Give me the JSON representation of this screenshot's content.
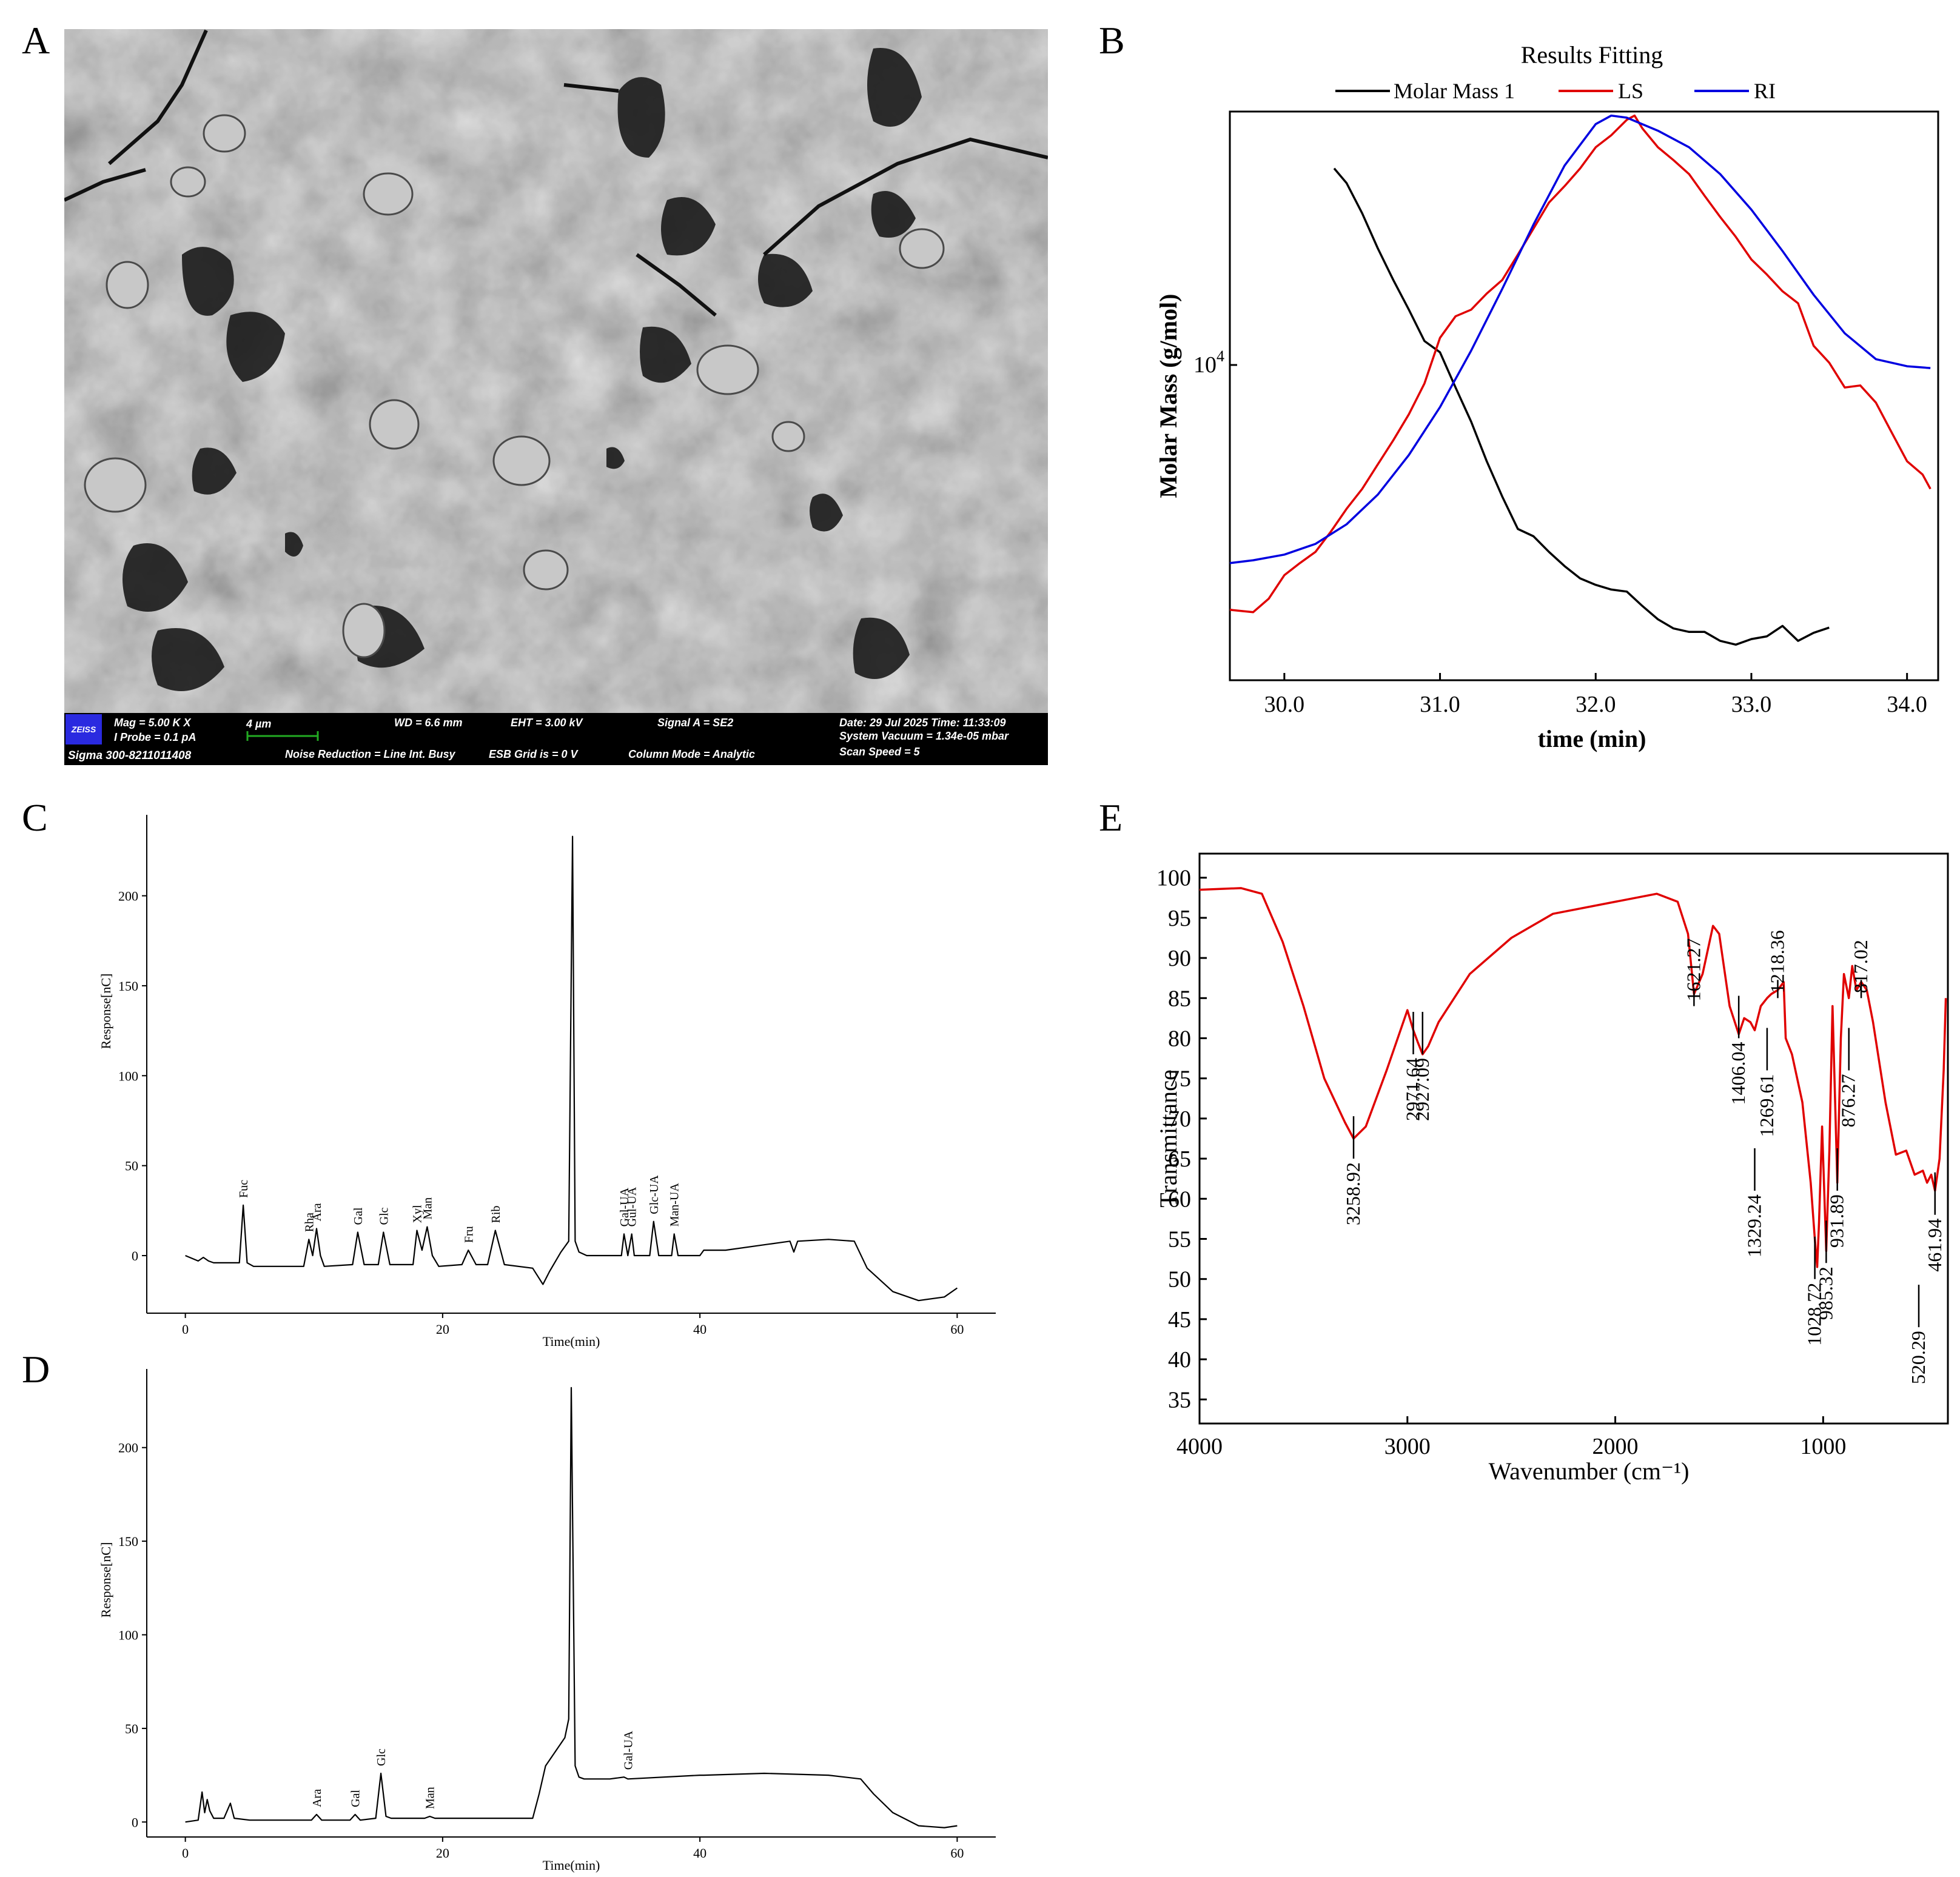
{
  "panels": {
    "A": {
      "letter": "A"
    },
    "B": {
      "letter": "B"
    },
    "C": {
      "letter": "C"
    },
    "D": {
      "letter": "D"
    },
    "E": {
      "letter": "E"
    }
  },
  "sem": {
    "logo": "ZEISS",
    "mag": "Mag =    5.00 K X",
    "probe": "I Probe =    0.1 pA",
    "scale": "4 µm",
    "wd": "WD =  6.6 mm",
    "eht": "EHT =  3.00 kV",
    "signal": "Signal A = SE2",
    "date": "Date: 29 Jul 2025    Time: 11:33:09",
    "vacuum": "System Vacuum = 1.34e-05 mbar",
    "instrument": "Sigma 300-8211011408",
    "noise": "Noise Reduction = Line Int. Busy",
    "esb": "ESB Grid is =     0  V",
    "column": "Column Mode = Analytic",
    "scan": "Scan Speed = 5",
    "colors": {
      "background": "#8a8a8a",
      "bar": "#000000",
      "logo": "#2a2ae0",
      "scale_bar": "#22aa22"
    }
  },
  "chart_data": [
    {
      "panel": "B",
      "type": "line",
      "title": "Results Fitting",
      "xlabel": "time (min)",
      "ylabel": "Molar Mass (g/mol)",
      "y_scale": "log",
      "y_tick_label_base": "10",
      "y_tick_label_exp": "4",
      "xlim": [
        29.65,
        34.2
      ],
      "ylim": [
        1450,
        42000
      ],
      "x_ticks": [
        "30.0",
        "31.0",
        "32.0",
        "33.0",
        "34.0"
      ],
      "legend_position": "top",
      "series": [
        {
          "name": "Molar Mass 1",
          "color": "#000000",
          "x": [
            30.32,
            30.4,
            30.5,
            30.6,
            30.7,
            30.8,
            30.9,
            31.0,
            31.1,
            31.2,
            31.3,
            31.4,
            31.5,
            31.6,
            31.7,
            31.8,
            31.9,
            32.0,
            32.1,
            32.2,
            32.3,
            32.4,
            32.5,
            32.6,
            32.7,
            32.8,
            32.9,
            33.0,
            33.1,
            33.2,
            33.3,
            33.4,
            33.5
          ],
          "y": [
            30000,
            27500,
            23000,
            18700,
            15500,
            13000,
            10800,
            10100,
            8200,
            6700,
            5300,
            4300,
            3550,
            3400,
            3100,
            2850,
            2650,
            2550,
            2480,
            2450,
            2250,
            2080,
            1970,
            1930,
            1930,
            1830,
            1790,
            1850,
            1880,
            2000,
            1830,
            1920,
            1980
          ]
        },
        {
          "name": "LS",
          "color": "#e00000",
          "x": [
            29.65,
            29.8,
            29.9,
            30.0,
            30.1,
            30.2,
            30.3,
            30.4,
            30.5,
            30.6,
            30.7,
            30.8,
            30.9,
            31.0,
            31.1,
            31.2,
            31.3,
            31.4,
            31.5,
            31.6,
            31.7,
            31.8,
            31.9,
            32.0,
            32.1,
            32.2,
            32.25,
            32.3,
            32.4,
            32.5,
            32.6,
            32.7,
            32.8,
            32.9,
            33.0,
            33.1,
            33.2,
            33.3,
            33.4,
            33.5,
            33.6,
            33.7,
            33.8,
            33.9,
            34.0,
            34.1,
            34.15
          ],
          "y": [
            2200,
            2170,
            2350,
            2700,
            2900,
            3100,
            3500,
            4000,
            4500,
            5200,
            6000,
            7000,
            8400,
            11000,
            12500,
            13000,
            14300,
            15500,
            18000,
            21000,
            24500,
            27000,
            30000,
            34000,
            36500,
            40000,
            41000,
            38000,
            34000,
            31500,
            29000,
            25500,
            22500,
            20000,
            17500,
            16000,
            14500,
            13500,
            10500,
            9500,
            8200,
            8300,
            7500,
            6300,
            5300,
            4900,
            4500
          ]
        },
        {
          "name": "RI",
          "color": "#0000e0",
          "x": [
            29.65,
            29.8,
            30.0,
            30.2,
            30.4,
            30.6,
            30.8,
            31.0,
            31.2,
            31.4,
            31.6,
            31.8,
            32.0,
            32.1,
            32.2,
            32.4,
            32.6,
            32.8,
            33.0,
            33.2,
            33.4,
            33.6,
            33.8,
            34.0,
            34.15
          ],
          "y": [
            2900,
            2950,
            3050,
            3250,
            3650,
            4350,
            5500,
            7300,
            10200,
            14700,
            21500,
            30500,
            39000,
            41000,
            40500,
            37500,
            34000,
            29000,
            23500,
            18400,
            14200,
            11300,
            9700,
            9300,
            9200
          ]
        }
      ]
    },
    {
      "panel": "C",
      "type": "line",
      "xlabel": "Time(min)",
      "ylabel": "Response[nC]",
      "xlim": [
        -3,
        63
      ],
      "ylim": [
        -32,
        245
      ],
      "x_ticks": [
        0,
        20,
        40,
        60
      ],
      "y_ticks": [
        0,
        50,
        100,
        150,
        200
      ],
      "series": [
        {
          "color": "#000000",
          "x": [
            0,
            1,
            1.4,
            1.8,
            2.2,
            4.2,
            4.5,
            4.8,
            5.3,
            9.2,
            9.6,
            9.9,
            10.2,
            10.5,
            10.8,
            13.0,
            13.4,
            13.9,
            15.0,
            15.4,
            15.9,
            17.7,
            18.0,
            18.4,
            18.8,
            19.2,
            19.7,
            21.5,
            22.0,
            22.6,
            23.5,
            24.1,
            24.8,
            27.0,
            27.8,
            28.3,
            29.2,
            29.8,
            30.1,
            30.3,
            30.6,
            31.2,
            33.9,
            34.1,
            34.4,
            34.7,
            34.9,
            35.2,
            36.1,
            36.4,
            36.8,
            37.8,
            38.0,
            38.3,
            40.0,
            40.3,
            42.0,
            45.0,
            47.0,
            47.3,
            47.6,
            50.0,
            52.0,
            53.0,
            55.0,
            57.0,
            59.0,
            60.0
          ],
          "y": [
            0,
            -3,
            -1,
            -3,
            -4,
            -4,
            28,
            -4,
            -6,
            -6,
            9,
            0,
            15,
            0,
            -6,
            -5,
            13,
            -5,
            -5,
            13,
            -5,
            -5,
            14,
            3,
            16,
            0,
            -6,
            -5,
            3,
            -5,
            -5,
            14,
            -5,
            -7,
            -16,
            -9,
            2,
            8,
            233,
            8,
            2,
            0,
            0,
            12,
            0,
            12,
            0,
            0,
            0,
            19,
            0,
            0,
            12,
            0,
            0,
            3,
            3,
            6,
            8,
            2,
            8,
            9,
            8,
            -7,
            -20,
            -25,
            -23,
            -18
          ]
        }
      ],
      "peak_labels": [
        {
          "label": "Fuc",
          "x": 4.5,
          "y": 28
        },
        {
          "label": "Rha",
          "x": 9.6,
          "y": 9
        },
        {
          "label": "Ara",
          "x": 10.2,
          "y": 15
        },
        {
          "label": "Gal",
          "x": 13.4,
          "y": 13
        },
        {
          "label": "Glc",
          "x": 15.4,
          "y": 13
        },
        {
          "label": "Xyl",
          "x": 18.0,
          "y": 14
        },
        {
          "label": "Man",
          "x": 18.8,
          "y": 16
        },
        {
          "label": "Fru",
          "x": 22.0,
          "y": 3
        },
        {
          "label": "Rib",
          "x": 24.1,
          "y": 14
        },
        {
          "label": "Gal-UA",
          "x": 34.1,
          "y": 12
        },
        {
          "label": "Gul-UA",
          "x": 34.7,
          "y": 12
        },
        {
          "label": "Glc-UA",
          "x": 36.4,
          "y": 19
        },
        {
          "label": "Man-UA",
          "x": 38.0,
          "y": 12
        }
      ]
    },
    {
      "panel": "D",
      "type": "line",
      "xlabel": "Time(min)",
      "ylabel": "Response[nC]",
      "xlim": [
        -3,
        63
      ],
      "ylim": [
        -8,
        242
      ],
      "x_ticks": [
        0,
        20,
        40,
        60
      ],
      "y_ticks": [
        0,
        50,
        100,
        150,
        200
      ],
      "series": [
        {
          "color": "#000000",
          "x": [
            0,
            1.0,
            1.3,
            1.5,
            1.7,
            1.9,
            2.2,
            3.0,
            3.5,
            3.8,
            5.0,
            9.8,
            10.2,
            10.6,
            12.8,
            13.2,
            13.6,
            14.8,
            15.2,
            15.6,
            16.0,
            18.6,
            19.0,
            19.4,
            27.0,
            27.5,
            28.0,
            29.0,
            29.5,
            29.8,
            30.0,
            30.3,
            30.6,
            31.0,
            33.0,
            34.1,
            34.4,
            40.0,
            40.3,
            45.0,
            50.0,
            52.5,
            53.5,
            55.0,
            57.0,
            59.0,
            60.0
          ],
          "y": [
            0,
            1,
            16,
            5,
            12,
            6,
            2,
            2,
            10,
            2,
            1,
            1,
            4,
            1,
            1,
            4,
            1,
            2,
            26,
            3,
            2,
            2,
            3,
            2,
            2,
            15,
            30,
            40,
            45,
            55,
            232,
            30,
            24,
            23,
            23,
            24,
            23,
            25,
            25,
            26,
            25,
            23,
            15,
            5,
            -2,
            -3,
            -2
          ]
        }
      ],
      "peak_labels": [
        {
          "label": "Ara",
          "x": 10.2,
          "y": 4
        },
        {
          "label": "Gal",
          "x": 13.2,
          "y": 4
        },
        {
          "label": "Glc",
          "x": 15.2,
          "y": 26
        },
        {
          "label": "Man",
          "x": 19.0,
          "y": 3
        },
        {
          "label": "Gal-UA",
          "x": 34.4,
          "y": 24
        }
      ]
    },
    {
      "panel": "E",
      "type": "line",
      "xlabel": "Wavenumber (cm⁻¹)",
      "ylabel": "Transmittance",
      "x_reversed": true,
      "xlim": [
        4000,
        400
      ],
      "ylim": [
        32,
        103
      ],
      "x_ticks": [
        4000,
        3000,
        2000,
        1000
      ],
      "y_ticks": [
        35,
        40,
        45,
        50,
        55,
        60,
        65,
        70,
        75,
        80,
        85,
        90,
        95,
        100
      ],
      "series": [
        {
          "color": "#e00000",
          "x": [
            4000,
            3800,
            3700,
            3600,
            3500,
            3400,
            3300,
            3258.92,
            3200,
            3100,
            3000,
            2971.64,
            2950,
            2927.09,
            2900,
            2850,
            2700,
            2500,
            2300,
            2000,
            1800,
            1700,
            1650,
            1621.27,
            1580,
            1530,
            1500,
            1450,
            1406.04,
            1380,
            1350,
            1329.24,
            1300,
            1269.61,
            1250,
            1218.36,
            1190,
            1180,
            1150,
            1100,
            1060,
            1040,
            1028.72,
            1020,
            1005,
            985.32,
            970,
            955,
            931.89,
            915,
            900,
            876.27,
            860,
            840,
            817.02,
            790,
            760,
            700,
            650,
            600,
            560,
            520.29,
            500,
            480,
            461.94,
            440,
            420,
            410
          ],
          "y": [
            98.5,
            98.7,
            98.0,
            92.0,
            84.0,
            75.0,
            69.5,
            67.5,
            69.0,
            76.0,
            83.5,
            81.0,
            79.5,
            78.0,
            79.0,
            82.0,
            88.0,
            92.5,
            95.5,
            97.0,
            98.0,
            97.0,
            93.0,
            85.5,
            88.0,
            94.0,
            93.0,
            84.0,
            80.5,
            82.5,
            82.0,
            81.0,
            84.0,
            85.0,
            85.5,
            86.0,
            87.0,
            80.0,
            78.0,
            72.0,
            62.0,
            55.0,
            51.5,
            57.0,
            69.0,
            53.5,
            66.0,
            84.0,
            62.0,
            80.0,
            88.0,
            85.0,
            89.0,
            86.0,
            87.0,
            86.0,
            82.0,
            72.0,
            65.5,
            66.0,
            63.0,
            63.5,
            62.0,
            63.0,
            61.0,
            65.0,
            76.0,
            85.0
          ]
        }
      ],
      "peak_labels": [
        "3258.92",
        "2971.64",
        "2927.09",
        "1621.27",
        "1406.04",
        "1329.24",
        "1269.61",
        "1218.36",
        "1028.72",
        "985.32",
        "931.89",
        "876.27",
        "817.02",
        "520.29",
        "461.94"
      ]
    }
  ]
}
